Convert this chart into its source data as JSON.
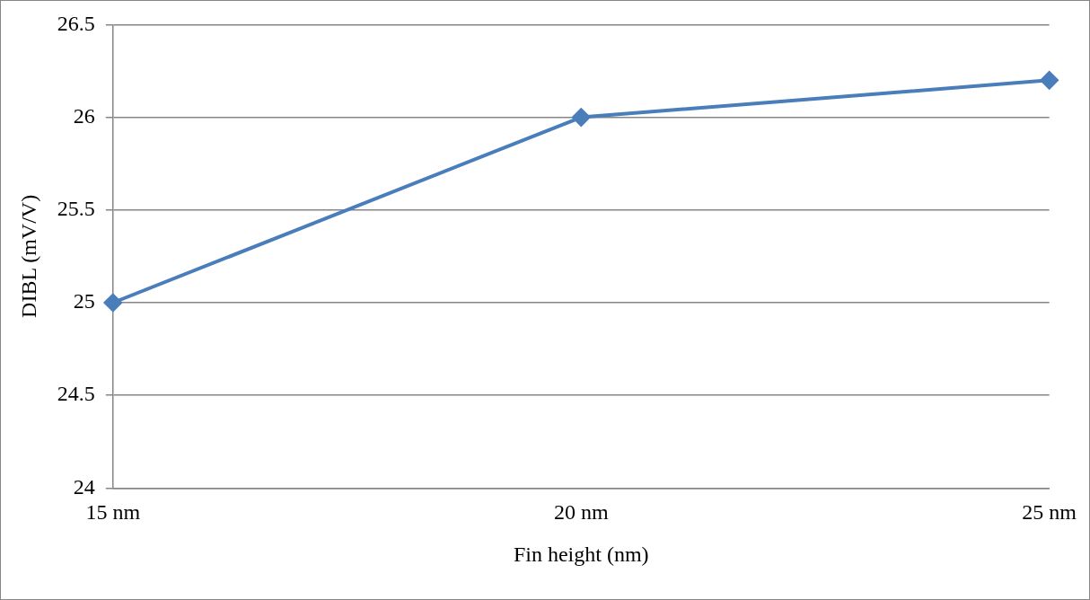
{
  "chart_data": {
    "type": "line",
    "xlabel": "Fin height (nm)",
    "ylabel": "DIBL (mV/V)",
    "categories": [
      "15 nm",
      "20 nm",
      "25 nm"
    ],
    "series": [
      {
        "color": "#4a7ebb",
        "values": [
          25,
          26,
          26.2
        ]
      }
    ],
    "ylim": [
      24,
      26.5
    ],
    "yticks": [
      24,
      24.5,
      25,
      25.5,
      26,
      26.5
    ],
    "grid": "y",
    "legend": false,
    "marker": "diamond",
    "line_style": "solid"
  }
}
